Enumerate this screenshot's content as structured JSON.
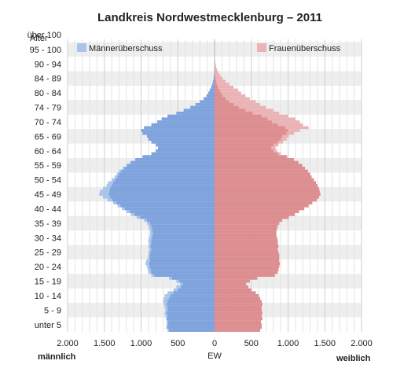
{
  "chart_data": {
    "type": "bar",
    "orientation": "horizontal",
    "title": "Landkreis Nordwestmecklenburg – 2011",
    "y_axis_title": "Alter",
    "x_axis_title": "EW",
    "left_side_label": "männlich",
    "right_side_label": "weiblich",
    "xlim": [
      -2000,
      2000
    ],
    "x_ticks": [
      -2000,
      -1500,
      -1000,
      -500,
      0,
      500,
      1000,
      1500,
      2000
    ],
    "x_tick_labels": [
      "2.000",
      "1.500",
      "1.000",
      "500",
      "0",
      "500",
      "1.000",
      "1.500",
      "2.000"
    ],
    "age_labels": [
      "unter 5",
      "5 - 9",
      "10 - 14",
      "15 - 19",
      "20 - 24",
      "25 - 29",
      "30 - 34",
      "35 - 39",
      "40 - 44",
      "45 - 49",
      "50 - 54",
      "55 - 59",
      "60 - 64",
      "65 - 69",
      "70 - 74",
      "74 - 79",
      "80 - 84",
      "84 - 89",
      "90 - 94",
      "95 - 100",
      "über 100"
    ],
    "ages": [
      0,
      1,
      2,
      3,
      4,
      5,
      6,
      7,
      8,
      9,
      10,
      11,
      12,
      13,
      14,
      15,
      16,
      17,
      18,
      19,
      20,
      21,
      22,
      23,
      24,
      25,
      26,
      27,
      28,
      29,
      30,
      31,
      32,
      33,
      34,
      35,
      36,
      37,
      38,
      39,
      40,
      41,
      42,
      43,
      44,
      45,
      46,
      47,
      48,
      49,
      50,
      51,
      52,
      53,
      54,
      55,
      56,
      57,
      58,
      59,
      60,
      61,
      62,
      63,
      64,
      65,
      66,
      67,
      68,
      69,
      70,
      71,
      72,
      73,
      74,
      75,
      76,
      77,
      78,
      79,
      80,
      81,
      82,
      83,
      84,
      85,
      86,
      87,
      88,
      89,
      90,
      91,
      92,
      93,
      94,
      95,
      96,
      97,
      98,
      99,
      100
    ],
    "series": [
      {
        "name": "Männerüberschuss",
        "side": "left",
        "values": [
          640,
          660,
          650,
          655,
          660,
          670,
          680,
          670,
          680,
          690,
          700,
          690,
          680,
          640,
          560,
          520,
          470,
          520,
          620,
          860,
          900,
          910,
          920,
          940,
          930,
          910,
          900,
          900,
          890,
          900,
          890,
          900,
          890,
          880,
          880,
          890,
          900,
          920,
          960,
          1060,
          1140,
          1200,
          1260,
          1320,
          1380,
          1460,
          1520,
          1570,
          1560,
          1520,
          1470,
          1450,
          1400,
          1360,
          1330,
          1300,
          1250,
          1200,
          1150,
          1080,
          980,
          860,
          800,
          770,
          800,
          860,
          900,
          920,
          980,
          1000,
          960,
          860,
          780,
          720,
          640,
          520,
          420,
          330,
          260,
          200,
          150,
          110,
          85,
          65,
          45,
          30,
          20,
          12,
          8,
          5,
          3,
          2,
          1,
          1,
          0,
          0,
          0,
          0,
          0,
          0,
          0
        ]
      },
      {
        "name": "Frauenüberschuss",
        "side": "right",
        "values": [
          620,
          640,
          640,
          630,
          650,
          640,
          650,
          640,
          640,
          650,
          640,
          620,
          600,
          560,
          500,
          460,
          430,
          480,
          580,
          820,
          860,
          870,
          880,
          890,
          880,
          880,
          880,
          870,
          860,
          870,
          860,
          860,
          850,
          840,
          840,
          850,
          860,
          880,
          920,
          1010,
          1090,
          1150,
          1220,
          1280,
          1330,
          1390,
          1420,
          1440,
          1430,
          1420,
          1400,
          1380,
          1350,
          1320,
          1300,
          1270,
          1230,
          1190,
          1140,
          1080,
          990,
          900,
          850,
          830,
          870,
          930,
          980,
          1010,
          1080,
          1160,
          1280,
          1200,
          1160,
          1100,
          1000,
          880,
          800,
          700,
          620,
          560,
          480,
          420,
          360,
          320,
          260,
          200,
          150,
          110,
          80,
          55,
          35,
          22,
          14,
          8,
          5,
          3,
          2,
          1,
          1,
          0,
          0
        ]
      }
    ],
    "overlap_color": "#7fa3dc",
    "grid": true
  }
}
